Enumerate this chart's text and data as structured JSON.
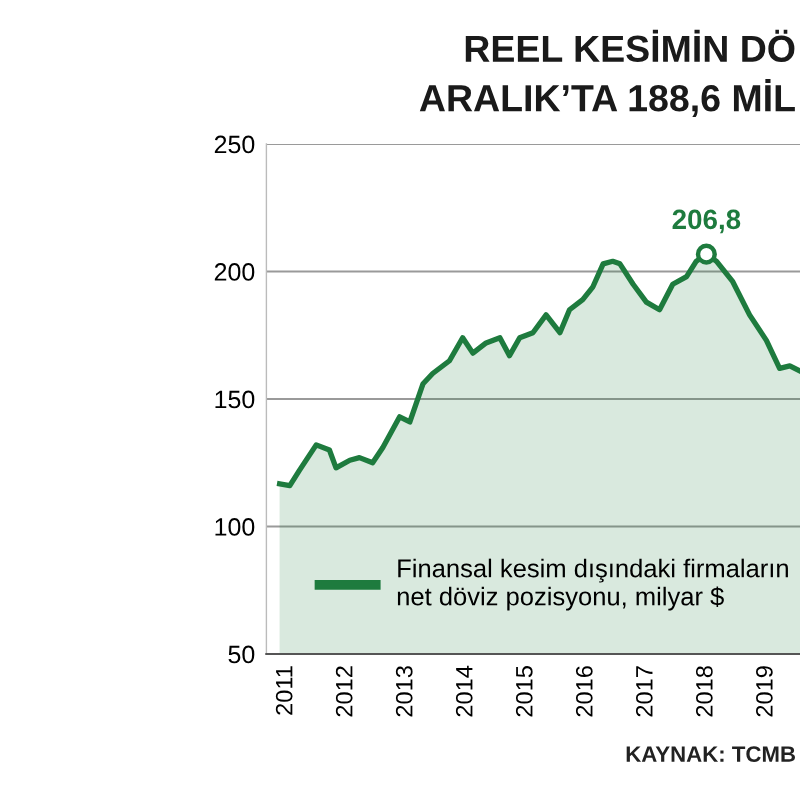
{
  "chart_data": {
    "type": "area",
    "title": "REEL KESİMİN DÖ",
    "subtitle": "ARALIK’TA 188,6 MİL",
    "annotations": [
      {
        "text": "206,8",
        "x": 2018.0,
        "y": 206.8
      },
      "KAYNAK: TCMB"
    ],
    "x": [
      2010.89,
      2011.06,
      2011.22,
      2011.5,
      2011.72,
      2011.83,
      2012.06,
      2012.22,
      2012.44,
      2012.61,
      2012.89,
      2013.06,
      2013.28,
      2013.44,
      2013.72,
      2013.94,
      2014.11,
      2014.33,
      2014.56,
      2014.72,
      2014.89,
      2015.11,
      2015.33,
      2015.56,
      2015.72,
      2015.94,
      2016.11,
      2016.28,
      2016.44,
      2016.56,
      2016.78,
      2017.0,
      2017.22,
      2017.44,
      2017.67,
      2017.83,
      2018.0,
      2018.17,
      2018.44,
      2018.72,
      2019.0,
      2019.22,
      2019.39,
      2019.56
    ],
    "series": [
      {
        "name": "Finansal kesim dışındaki firmaların\nnet döviz pozisyonu, milyar $",
        "color": "#1e7b3e",
        "values": [
          116.7,
          116,
          122,
          132,
          130,
          123,
          126,
          127,
          125,
          131,
          143,
          141,
          156,
          160,
          165,
          174,
          168,
          172,
          174,
          167,
          174,
          176,
          183,
          176,
          185,
          189,
          194,
          203,
          204,
          203,
          195,
          188,
          185,
          195,
          198,
          204,
          206.8,
          204,
          196,
          183,
          173,
          162,
          163,
          161
        ]
      }
    ],
    "xlim": [
      2010.67,
      2019.56
    ],
    "xticks": [
      2011,
      2012,
      2013,
      2014,
      2015,
      2016,
      2017,
      2018,
      2019
    ],
    "ylim": [
      50,
      250
    ],
    "yticks": [
      50,
      100,
      150,
      200,
      250
    ],
    "grid": "y",
    "legend": "bottom",
    "marker": "none",
    "line_style": "solid"
  }
}
